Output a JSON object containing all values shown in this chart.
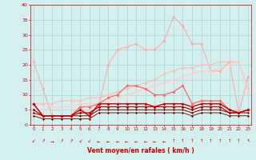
{
  "background_color": "#d4f0ee",
  "grid_color": "#aad8d0",
  "xlabel": "Vent moyen/en rafales ( km/h )",
  "xlabel_color": "#cc0000",
  "tick_color": "#cc0000",
  "xlim": [
    0,
    23
  ],
  "ylim": [
    0,
    40
  ],
  "yticks": [
    0,
    5,
    10,
    15,
    20,
    25,
    30,
    35,
    40
  ],
  "xticks": [
    0,
    1,
    2,
    3,
    4,
    5,
    6,
    7,
    8,
    9,
    10,
    11,
    12,
    13,
    14,
    15,
    16,
    17,
    18,
    19,
    20,
    21,
    22,
    23
  ],
  "series": [
    {
      "x": [
        0,
        1,
        2,
        3,
        4,
        5,
        6,
        7,
        8,
        9,
        10,
        11,
        12,
        13,
        14,
        15,
        16,
        17,
        18,
        19,
        20,
        21,
        22,
        23
      ],
      "y": [
        21,
        12,
        3,
        3,
        3,
        6,
        3,
        6,
        20,
        25,
        26,
        27,
        25,
        25,
        28,
        36,
        33,
        27,
        27,
        18,
        18,
        21,
        4,
        16
      ],
      "color": "#ffaaaa",
      "marker": "D",
      "markersize": 2.0,
      "linewidth": 0.8,
      "zorder": 2
    },
    {
      "x": [
        0,
        1,
        2,
        3,
        4,
        5,
        6,
        7,
        8,
        9,
        10,
        11,
        12,
        13,
        14,
        15,
        16,
        17,
        18,
        19,
        20,
        21,
        22,
        23
      ],
      "y": [
        7,
        7,
        7,
        8,
        8,
        8,
        9,
        9,
        10,
        11,
        12,
        13,
        14,
        15,
        17,
        18,
        19,
        19,
        20,
        20,
        21,
        21,
        21,
        12
      ],
      "color": "#ffbbbb",
      "marker": "D",
      "markersize": 2.0,
      "linewidth": 0.8,
      "zorder": 2
    },
    {
      "x": [
        0,
        1,
        2,
        3,
        4,
        5,
        6,
        7,
        8,
        9,
        10,
        11,
        12,
        13,
        14,
        15,
        16,
        17,
        18,
        19,
        20,
        21,
        22,
        23
      ],
      "y": [
        5,
        5,
        6,
        6,
        6,
        7,
        7,
        7,
        8,
        9,
        10,
        11,
        12,
        13,
        14,
        15,
        16,
        17,
        18,
        18,
        19,
        20,
        21,
        11
      ],
      "color": "#ffcccc",
      "marker": "D",
      "markersize": 2.0,
      "linewidth": 0.8,
      "zorder": 2
    },
    {
      "x": [
        0,
        1,
        2,
        3,
        4,
        5,
        6,
        7,
        8,
        9,
        10,
        11,
        12,
        13,
        14,
        15,
        16,
        17,
        18,
        19,
        20,
        21,
        22,
        23
      ],
      "y": [
        3,
        3,
        4,
        5,
        5,
        5,
        6,
        6,
        7,
        8,
        9,
        10,
        11,
        12,
        13,
        14,
        14,
        15,
        16,
        17,
        17,
        19,
        21,
        11
      ],
      "color": "#ffdddd",
      "marker": "D",
      "markersize": 1.5,
      "linewidth": 0.7,
      "zorder": 1
    },
    {
      "x": [
        0,
        1,
        2,
        3,
        4,
        5,
        6,
        7,
        8,
        9,
        10,
        11,
        12,
        13,
        14,
        15,
        16,
        17,
        18,
        19,
        20,
        21,
        22,
        23
      ],
      "y": [
        7,
        3,
        3,
        3,
        3,
        6,
        6,
        7,
        9,
        10,
        13,
        13,
        12,
        10,
        10,
        11,
        13,
        7,
        8,
        8,
        8,
        5,
        4,
        5
      ],
      "color": "#ff6666",
      "marker": "D",
      "markersize": 2.0,
      "linewidth": 0.9,
      "zorder": 4
    },
    {
      "x": [
        0,
        1,
        2,
        3,
        4,
        5,
        6,
        7,
        8,
        9,
        10,
        11,
        12,
        13,
        14,
        15,
        16,
        17,
        18,
        19,
        20,
        21,
        22,
        23
      ],
      "y": [
        7,
        3,
        3,
        3,
        3,
        5,
        3,
        7,
        7,
        7,
        7,
        7,
        7,
        6,
        7,
        7,
        7,
        6,
        7,
        7,
        7,
        5,
        4,
        5
      ],
      "color": "#cc0000",
      "marker": "D",
      "markersize": 2.0,
      "linewidth": 1.0,
      "zorder": 5
    },
    {
      "x": [
        0,
        1,
        2,
        3,
        4,
        5,
        6,
        7,
        8,
        9,
        10,
        11,
        12,
        13,
        14,
        15,
        16,
        17,
        18,
        19,
        20,
        21,
        22,
        23
      ],
      "y": [
        5,
        3,
        3,
        3,
        3,
        4,
        4,
        6,
        6,
        6,
        6,
        6,
        6,
        6,
        6,
        6,
        6,
        5,
        6,
        6,
        6,
        4,
        4,
        5
      ],
      "color": "#aa0000",
      "marker": "D",
      "markersize": 1.8,
      "linewidth": 0.8,
      "zorder": 4
    },
    {
      "x": [
        0,
        1,
        2,
        3,
        4,
        5,
        6,
        7,
        8,
        9,
        10,
        11,
        12,
        13,
        14,
        15,
        16,
        17,
        18,
        19,
        20,
        21,
        22,
        23
      ],
      "y": [
        4,
        3,
        3,
        3,
        3,
        3,
        3,
        5,
        5,
        5,
        5,
        5,
        5,
        5,
        5,
        5,
        5,
        4,
        5,
        5,
        5,
        4,
        4,
        4
      ],
      "color": "#880000",
      "marker": "D",
      "markersize": 1.5,
      "linewidth": 0.7,
      "zorder": 3
    },
    {
      "x": [
        0,
        1,
        2,
        3,
        4,
        5,
        6,
        7,
        8,
        9,
        10,
        11,
        12,
        13,
        14,
        15,
        16,
        17,
        18,
        19,
        20,
        21,
        22,
        23
      ],
      "y": [
        3,
        2,
        2,
        2,
        2,
        2,
        2,
        4,
        4,
        4,
        4,
        4,
        4,
        4,
        4,
        4,
        4,
        3,
        4,
        4,
        4,
        3,
        3,
        3
      ],
      "color": "#660000",
      "marker": "D",
      "markersize": 1.5,
      "linewidth": 0.6,
      "zorder": 2
    }
  ],
  "wind_arrows": {
    "color": "#cc0000",
    "fontsize": 4,
    "symbols": [
      "↙",
      "↗",
      "→",
      "↗",
      "↗",
      "↙",
      "↙",
      "←",
      "←",
      "←",
      "←",
      "←",
      "←",
      "←",
      "←",
      "↑",
      "↑",
      "↑",
      "↑",
      "↑",
      "↑",
      "↑",
      "↑",
      "↖"
    ]
  }
}
